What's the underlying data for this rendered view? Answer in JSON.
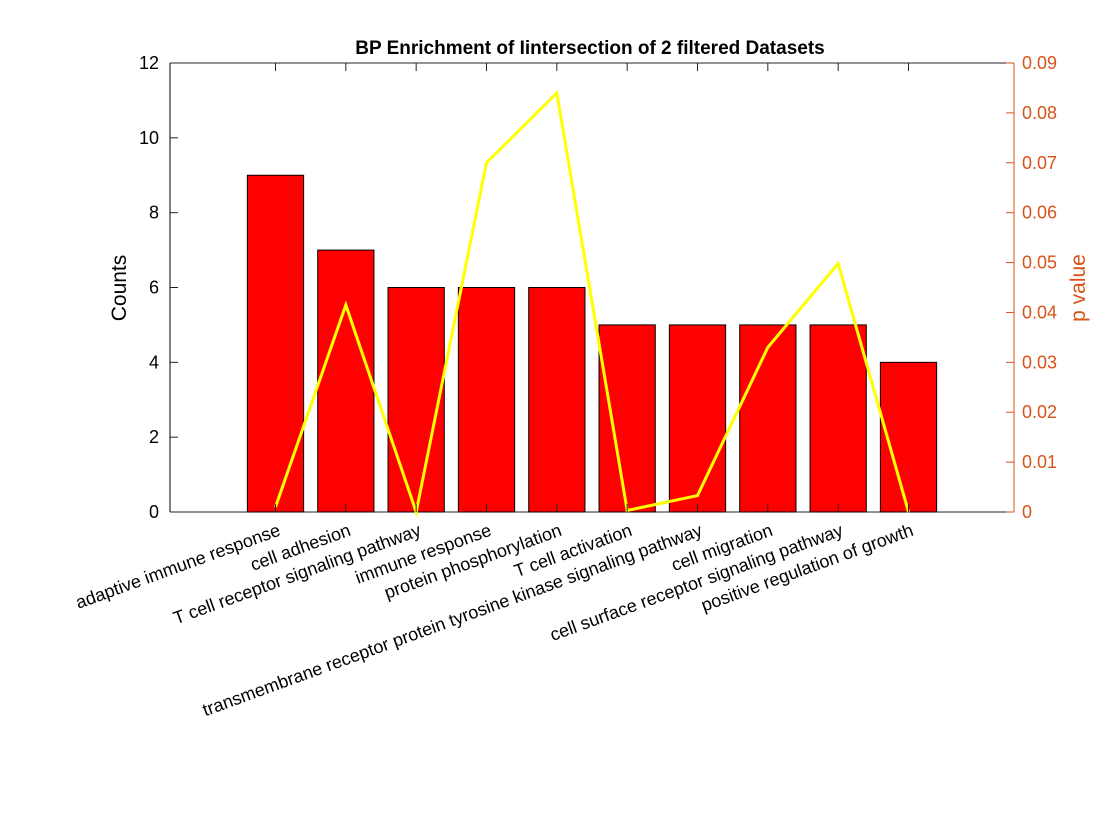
{
  "chart_data": {
    "type": "bar",
    "title": "BP Enrichment of Iintersection of 2 filtered Datasets",
    "xlabel": "",
    "ylabel": "Counts",
    "y2label": "p value",
    "ylim": [
      0,
      12
    ],
    "y2lim": [
      0,
      0.09
    ],
    "yticks": [
      "0",
      "2",
      "4",
      "6",
      "8",
      "10",
      "12"
    ],
    "y2ticks": [
      "0",
      "0.01",
      "0.02",
      "0.03",
      "0.04",
      "0.05",
      "0.06",
      "0.07",
      "0.08",
      "0.09"
    ],
    "categories": [
      "adaptive immune response",
      "cell adhesion",
      "T cell receptor signaling pathway",
      "immune response",
      "protein phosphorylation",
      "T cell activation",
      "transmembrane receptor protein tyrosine kinase signaling pathway",
      "cell migration",
      "cell surface receptor signaling pathway",
      "positive regulation of growth"
    ],
    "series": [
      {
        "axis": "left",
        "type": "bar",
        "values": [
          9,
          7,
          6,
          6,
          6,
          5,
          5,
          5,
          5,
          4
        ]
      },
      {
        "axis": "right",
        "type": "line",
        "values": [
          0.001,
          0.0415,
          0.0,
          0.07,
          0.084,
          0.0003,
          0.0033,
          0.033,
          0.0498,
          0.0
        ]
      }
    ],
    "colors": {
      "bar_fill": "#ff0000",
      "bar_edge": "#000000",
      "line": "#ffff00",
      "right_axis": "#d95319",
      "left_axis": "#000000"
    },
    "grid": false
  }
}
